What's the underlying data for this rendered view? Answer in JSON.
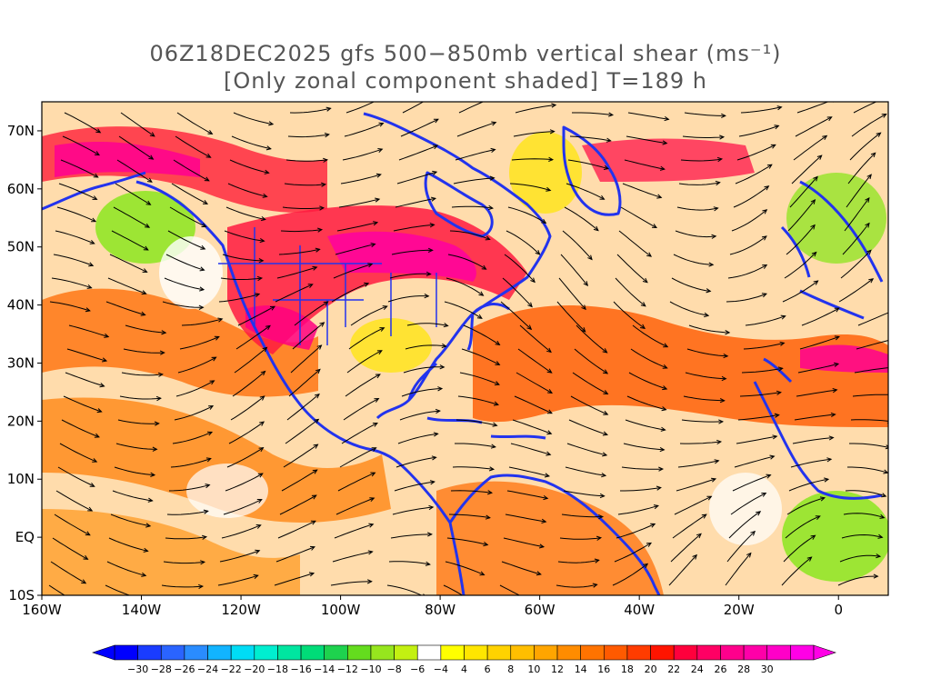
{
  "title": {
    "line1": "06Z18DEC2025 gfs 500−850mb vertical shear (ms⁻¹)",
    "line2": "[Only zonal component shaded] T=189 h"
  },
  "map": {
    "lon_range": [
      -160,
      10
    ],
    "lat_range": [
      -10,
      75
    ],
    "lat_ticks": [
      {
        "value": 70,
        "label": "70N"
      },
      {
        "value": 60,
        "label": "60N"
      },
      {
        "value": 50,
        "label": "50N"
      },
      {
        "value": 40,
        "label": "40N"
      },
      {
        "value": 30,
        "label": "30N"
      },
      {
        "value": 20,
        "label": "20N"
      },
      {
        "value": 10,
        "label": "10N"
      },
      {
        "value": 0,
        "label": "EQ"
      },
      {
        "value": -10,
        "label": "10S"
      }
    ],
    "lon_ticks": [
      {
        "value": -160,
        "label": "160W"
      },
      {
        "value": -140,
        "label": "140W"
      },
      {
        "value": -120,
        "label": "120W"
      },
      {
        "value": -100,
        "label": "100W"
      },
      {
        "value": -80,
        "label": "80W"
      },
      {
        "value": -60,
        "label": "60W"
      },
      {
        "value": -40,
        "label": "40W"
      },
      {
        "value": -20,
        "label": "20W"
      },
      {
        "value": 0,
        "label": "0"
      }
    ],
    "colors": {
      "coastline": "#2233ee",
      "streamline": "#000000",
      "background": "#ffffff"
    }
  },
  "colorbar": {
    "min_label": "−30",
    "max_label": "30",
    "bins": [
      {
        "color": "#0000ff"
      },
      {
        "color": "#1a3cff"
      },
      {
        "color": "#2a64ff"
      },
      {
        "color": "#2a8cff"
      },
      {
        "color": "#12b4ff"
      },
      {
        "color": "#00dcf5"
      },
      {
        "color": "#00eed0"
      },
      {
        "color": "#00e6a0"
      },
      {
        "color": "#00dc78"
      },
      {
        "color": "#1ed24e"
      },
      {
        "color": "#64dc1e"
      },
      {
        "color": "#96e61e"
      },
      {
        "color": "#c3f012"
      },
      {
        "color": "#ffffff"
      },
      {
        "color": "#ffff00"
      },
      {
        "color": "#ffe600"
      },
      {
        "color": "#ffd200"
      },
      {
        "color": "#ffbe00"
      },
      {
        "color": "#ffa500"
      },
      {
        "color": "#ff8c00"
      },
      {
        "color": "#ff7300"
      },
      {
        "color": "#ff5a00"
      },
      {
        "color": "#ff3c00"
      },
      {
        "color": "#ff1400"
      },
      {
        "color": "#ff003c"
      },
      {
        "color": "#ff0064"
      },
      {
        "color": "#ff008c"
      },
      {
        "color": "#ff00a8"
      },
      {
        "color": "#ff00c8"
      },
      {
        "color": "#ff00e6"
      }
    ],
    "labels": [
      "−30",
      "−28",
      "−26",
      "−24",
      "−22",
      "−20",
      "−18",
      "−16",
      "−14",
      "−12",
      "−10",
      "−8",
      "−6",
      "−4",
      "4",
      "6",
      "8",
      "10",
      "12",
      "14",
      "16",
      "18",
      "20",
      "22",
      "24",
      "26",
      "28",
      "30"
    ]
  }
}
